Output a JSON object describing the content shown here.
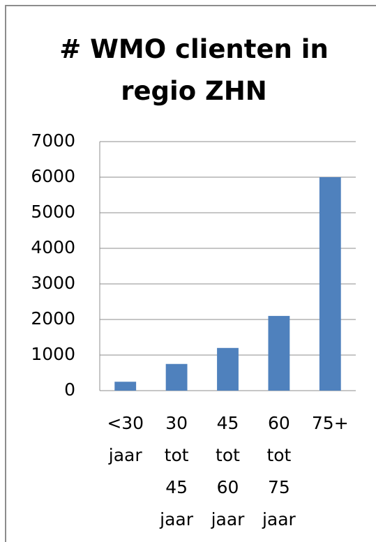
{
  "chart_data": {
    "type": "bar",
    "title": "# WMO clienten in regio ZHN",
    "categories": [
      "<30 jaar",
      "30 tot 45 jaar",
      "45 tot 60 jaar",
      "60 tot 75 jaar",
      "75+"
    ],
    "values": [
      250,
      750,
      1200,
      2100,
      6000
    ],
    "color": "#4f81bd",
    "ylim": [
      0,
      7000
    ],
    "yticks": [
      0,
      1000,
      2000,
      3000,
      4000,
      5000,
      6000,
      7000
    ],
    "grid": true
  }
}
